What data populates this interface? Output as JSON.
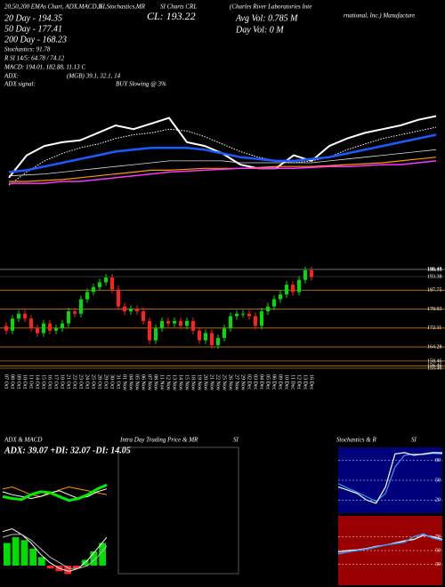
{
  "header": {
    "line1": "20,50,200 EMAs Chart, ADX,MACD,R",
    "line1b": "SI,Stochastics,MR",
    "line1c": "SI Charts CRL",
    "company1": "(Charles River Laboratories Inte",
    "company2": "rnational, Inc.) Manufacture",
    "ema20": "20 Day - 194.35",
    "ema50": "50 Day - 177.41",
    "ema200": "200 Day - 168.23",
    "stoch": "Stochastics: 91.78",
    "rsi": "R SI 14/5: 64.78 / 74.12",
    "macd": "MACD: 194.01, 182.88, 11.13 C",
    "close": "CL: 193.22",
    "avgvol": "Avg Vol: 0.785 M",
    "dayvol": "Day Vol: 0 M",
    "adx_label": "ADX:",
    "adx_value": "(MGB) 39.1, 32.1, 14",
    "adx_signal_label": "ADX  signal:",
    "adx_signal": "BUY Slowing @ 3%"
  },
  "chart_data": [
    {
      "type": "line",
      "ylim": [
        150,
        200
      ],
      "series": [
        {
          "color": "#ffffff",
          "values": [
            162,
            174,
            179,
            181,
            182,
            186,
            190,
            188,
            191,
            194,
            181,
            179,
            175,
            169,
            167,
            167,
            174,
            171,
            179,
            183,
            186,
            188,
            190,
            193,
            195
          ]
        },
        {
          "color": "#ffffff",
          "style": "dotted",
          "values": [
            158,
            165,
            171,
            175,
            178,
            180,
            183,
            185,
            186,
            188,
            187,
            184,
            180,
            176,
            173,
            171,
            170,
            171,
            173,
            177,
            180,
            183,
            185,
            187,
            189
          ]
        },
        {
          "color": "#1a5cff",
          "values": [
            165,
            166,
            168,
            170,
            172,
            174,
            176,
            177,
            178,
            178,
            178,
            177,
            175,
            173,
            172,
            171,
            171,
            172,
            173,
            175,
            177,
            179,
            181,
            183,
            185
          ]
        },
        {
          "color": "#dddddd",
          "values": [
            163,
            163.5,
            164,
            165,
            166,
            167,
            168,
            169,
            170,
            171,
            171,
            171,
            171,
            170,
            170,
            170,
            170,
            170,
            171,
            172,
            173,
            174,
            175,
            176,
            177
          ]
        },
        {
          "color": "#ff9900",
          "values": [
            160,
            160,
            160.5,
            161,
            162,
            163,
            164,
            165,
            166,
            166,
            166.5,
            167,
            167,
            167,
            167.5,
            168,
            168,
            168,
            168.5,
            169,
            169.5,
            170,
            171,
            172,
            173
          ]
        },
        {
          "color": "#ff33ff",
          "values": [
            159,
            159,
            159,
            160,
            160,
            161,
            162,
            163,
            164,
            165,
            165.5,
            166,
            166.5,
            167,
            167,
            167,
            167,
            167.5,
            168,
            168,
            168.5,
            169,
            169,
            170,
            171
          ]
        }
      ]
    },
    {
      "type": "candlestick",
      "categories": [
        "07 Oct",
        "08 Oct",
        "09 Oct",
        "10 Oct",
        "11 Oct",
        "14 Oct",
        "15 Oct",
        "16 Oct",
        "17 Oct",
        "18 Oct",
        "21 Oct",
        "22 Oct",
        "23 Oct",
        "24 Oct",
        "25 Oct",
        "28 Oct",
        "29 Oct",
        "30 Oct",
        "31 Oct",
        "01 Nov",
        "04 Nov",
        "05 Nov",
        "06 Nov",
        "07 Nov",
        "08 Nov",
        "11 Nov",
        "12 Nov",
        "13 Nov",
        "14 Nov",
        "15 Nov",
        "18 Nov",
        "19 Nov",
        "20 Nov",
        "21 Nov",
        "22 Nov",
        "25 Nov",
        "26 Nov",
        "27 Nov",
        "29 Nov",
        "02 Dec",
        "03 Dec",
        "04 Dec",
        "05 Dec",
        "06 Dec",
        "09 Dec",
        "10 Dec",
        "11 Dec",
        "12 Dec",
        "13 Dec",
        "16 Dec"
      ],
      "open": [
        173,
        171,
        176,
        178,
        176,
        172,
        170,
        174,
        171,
        172,
        174,
        179,
        178,
        184,
        187,
        189,
        191,
        193,
        188,
        181,
        179,
        180,
        179,
        175,
        167,
        172,
        175,
        174,
        175,
        173,
        175,
        171,
        167,
        170,
        165,
        168,
        172,
        177,
        178,
        178,
        177,
        173,
        179,
        181,
        184,
        186,
        190,
        187,
        192,
        196
      ],
      "high": [
        174.5,
        177.5,
        179.5,
        179.5,
        177.5,
        173.5,
        175.5,
        175.5,
        173.5,
        175.5,
        180.5,
        180.5,
        185.5,
        188.5,
        190.5,
        192.5,
        194.5,
        194.5,
        189.5,
        182.5,
        181.5,
        181.5,
        180.5,
        176.5,
        173.5,
        176.5,
        176.5,
        176.5,
        176.5,
        176.5,
        176.5,
        172.5,
        171.5,
        171.5,
        169.5,
        173.5,
        178.5,
        179.5,
        179.5,
        179.5,
        178.5,
        180.5,
        182.5,
        185.5,
        187.5,
        191.5,
        191.5,
        193.5,
        197.5,
        197.5
      ],
      "low": [
        169.5,
        169.5,
        174.5,
        174.5,
        170.5,
        168.5,
        168.5,
        169.5,
        169.5,
        170.5,
        172.5,
        176.5,
        176.5,
        182.5,
        185.5,
        187.5,
        189.5,
        186.5,
        179.5,
        177.5,
        177.5,
        177.5,
        173.5,
        165.5,
        165.5,
        170.5,
        172.5,
        172.5,
        171.5,
        171.5,
        169.5,
        165.5,
        165.5,
        163.5,
        163.5,
        166.5,
        170.5,
        175.5,
        176.5,
        175.5,
        171.5,
        171.5,
        177.5,
        179.5,
        182.5,
        184.5,
        185.5,
        185.5,
        190.5,
        191.72
      ],
      "close": [
        171,
        176,
        178,
        176,
        172,
        170,
        174,
        171,
        172,
        174,
        179,
        178,
        184,
        187,
        189,
        191,
        193,
        188,
        181,
        179,
        180,
        179,
        175,
        167,
        172,
        175,
        174,
        175,
        173,
        175,
        171,
        167,
        170,
        165,
        168,
        172,
        177,
        178,
        178,
        177,
        173,
        179,
        181,
        184,
        186,
        190,
        187,
        192,
        196,
        193.22
      ],
      "up_color": "#00dd00",
      "down_color": "#ff2020",
      "level_color": "#c87800",
      "ylim": [
        154,
        200
      ],
      "yticks": [
        196.48,
        196.13,
        193.38,
        187.75,
        179.93,
        172.11,
        164.28,
        158.46,
        156.46,
        155.46
      ]
    },
    {
      "type": "line",
      "title": "ADX  & MACD",
      "subtitle": "ADX: 39.07 +DI: 32.07 -DI: 14.05",
      "ylim": [
        0,
        60
      ],
      "series": [
        {
          "color": "#ff9900",
          "values": [
            28,
            30,
            26,
            22,
            20,
            23,
            27,
            30,
            28,
            26,
            24,
            22
          ]
        },
        {
          "color": "#ffffff",
          "values": [
            25,
            22,
            20,
            18,
            20,
            24,
            26,
            22,
            18,
            20,
            25,
            28
          ]
        },
        {
          "color": "#00ee00",
          "values": [
            20,
            18,
            17,
            22,
            25,
            24,
            20,
            16,
            18,
            22,
            28,
            32
          ]
        }
      ]
    },
    {
      "type": "bar",
      "ylim": [
        -6,
        16
      ],
      "values": [
        8,
        10,
        9,
        6,
        3,
        -1,
        -2,
        -3,
        -1,
        2,
        5,
        8
      ],
      "up_color": "#00dd00",
      "down_color": "#ff2020",
      "series": [
        {
          "color": "#ffffff",
          "values": [
            12,
            13,
            11,
            8,
            4,
            1,
            -1,
            -2,
            -1,
            2,
            6,
            10
          ]
        },
        {
          "color": "#bbbbbb",
          "values": [
            10,
            11,
            11,
            9,
            6,
            3,
            1,
            -1,
            -1,
            0,
            3,
            7
          ]
        }
      ]
    },
    {
      "type": "line",
      "title": "Intra Day Trading Price  & MR",
      "subtitle": "SI",
      "border": "#555555",
      "series": []
    },
    {
      "type": "line",
      "title": "Stochastics & R",
      "subtitle": "SI",
      "background": "#00007a",
      "ylim": [
        0,
        100
      ],
      "yticks": [
        80,
        50,
        20
      ],
      "series": [
        {
          "color": "#3399ff",
          "values": [
            45,
            38,
            32,
            25,
            18,
            30,
            70,
            88,
            90,
            89,
            91,
            90
          ]
        },
        {
          "color": "#ffffff",
          "values": [
            40,
            35,
            30,
            20,
            15,
            40,
            90,
            92,
            88,
            90,
            92,
            91.78
          ]
        }
      ]
    },
    {
      "type": "line",
      "background": "#9a0000",
      "ylim": [
        0,
        100
      ],
      "yticks": [
        70,
        50,
        30
      ],
      "series": [
        {
          "color": "#ffffff",
          "values": [
            48,
            50,
            51,
            53,
            56,
            58,
            61,
            64,
            66,
            72,
            70,
            66
          ]
        },
        {
          "color": "#3399ff",
          "values": [
            45,
            48,
            50,
            52,
            55,
            58,
            60,
            62,
            70,
            74,
            68,
            64.78
          ]
        }
      ]
    }
  ]
}
